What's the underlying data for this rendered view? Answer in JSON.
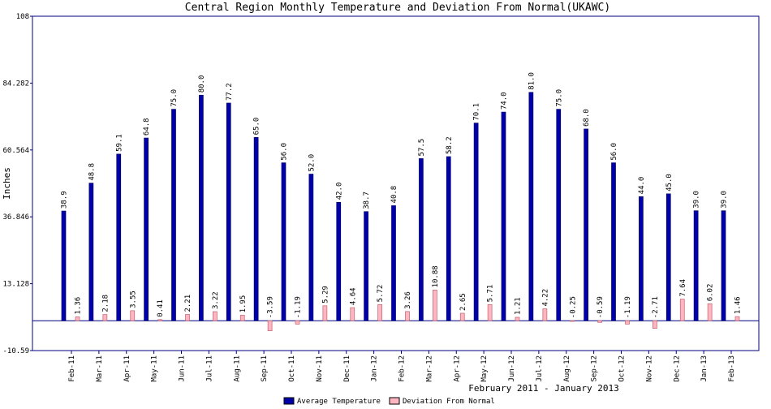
{
  "chart_data": {
    "type": "bar",
    "title": "Central Region Monthly Temperature and Deviation From Normal(UKAWC)",
    "y_label": "Inches",
    "x_label": "February 2011 - January 2013",
    "categories": [
      "Feb-11",
      "Mar-11",
      "Apr-11",
      "May-11",
      "Jun-11",
      "Jul-11",
      "Aug-11",
      "Sep-11",
      "Oct-11",
      "Nov-11",
      "Dec-11",
      "Jan-12",
      "Feb-12",
      "Mar-12",
      "Apr-12",
      "May-12",
      "Jun-12",
      "Jul-12",
      "Aug-12",
      "Sep-12",
      "Oct-12",
      "Nov-12",
      "Dec-12",
      "Jan-13",
      "Feb-13"
    ],
    "series": [
      {
        "name": "Average Temperature",
        "color": "#0000aa",
        "values": [
          38.9,
          48.8,
          59.1,
          64.8,
          75.0,
          80.0,
          77.2,
          65.0,
          56.0,
          52.0,
          42.0,
          38.7,
          40.8,
          57.5,
          58.2,
          70.1,
          74.0,
          81.0,
          75.0,
          68.0,
          56.0,
          44.0,
          45.0,
          39.0,
          39.0
        ],
        "value_labels": [
          "38.9",
          "48.8",
          "59.1",
          "64.8",
          "75.0",
          "80.0",
          "77.2",
          "65.0",
          "56.0",
          "52.0",
          "42.0",
          "38.7",
          "40.8",
          "57.5",
          "58.2",
          "70.1",
          "74.0",
          "81.0",
          "75.0",
          "68.0",
          "56.0",
          "44.0",
          "45.0",
          "39.0",
          "39.0"
        ]
      },
      {
        "name": "Deviation From Normal",
        "color": "#ffb6c1",
        "values": [
          1.36,
          2.18,
          3.55,
          0.41,
          2.21,
          3.22,
          1.95,
          -3.59,
          -1.19,
          5.29,
          4.64,
          5.72,
          3.26,
          10.88,
          2.65,
          5.71,
          1.21,
          4.22,
          -0.25,
          -0.59,
          -1.19,
          -2.71,
          7.64,
          6.02,
          1.46
        ]
      }
    ],
    "ylim": [
      -10.59,
      108
    ],
    "yticks": [
      -10.59,
      13.128,
      36.846,
      60.564,
      84.282,
      108
    ],
    "legend": "bottom"
  }
}
